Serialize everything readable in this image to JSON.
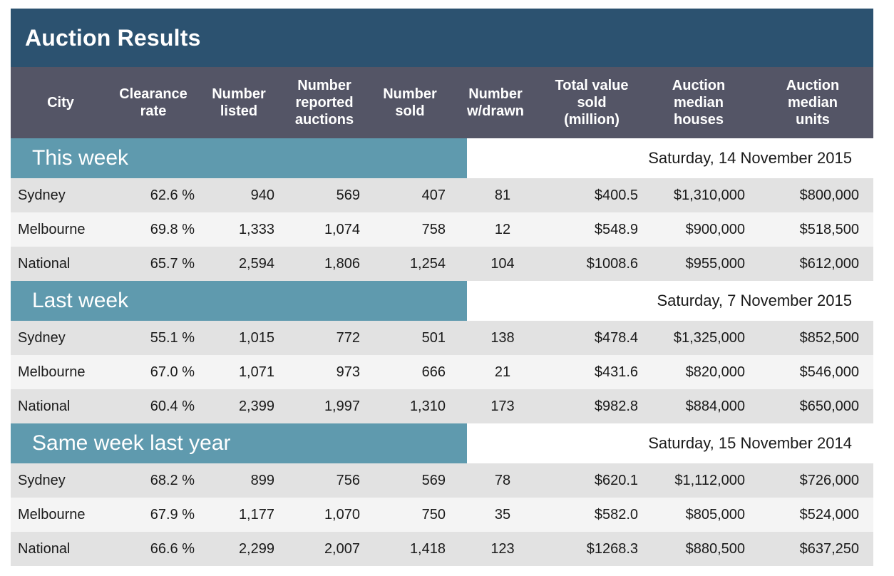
{
  "title": "Auction Results",
  "columns": [
    "City",
    "Clearance\nrate",
    "Number\nlisted",
    "Number\nreported\nauctions",
    "Number\nsold",
    "Number\nw/drawn",
    "Total value\nsold\n(million)",
    "Auction\nmedian\nhouses",
    "Auction\nmedian\nunits"
  ],
  "sections": [
    {
      "label": "This week",
      "date": "Saturday, 14 November 2015",
      "rows": [
        [
          "Sydney",
          "62.6 %",
          "940",
          "569",
          "407",
          "81",
          "$400.5",
          "$1,310,000",
          "$800,000"
        ],
        [
          "Melbourne",
          "69.8 %",
          "1,333",
          "1,074",
          "758",
          "12",
          "$548.9",
          "$900,000",
          "$518,500"
        ],
        [
          "National",
          "65.7 %",
          "2,594",
          "1,806",
          "1,254",
          "104",
          "$1008.6",
          "$955,000",
          "$612,000"
        ]
      ]
    },
    {
      "label": "Last week",
      "date": "Saturday, 7 November 2015",
      "rows": [
        [
          "Sydney",
          "55.1 %",
          "1,015",
          "772",
          "501",
          "138",
          "$478.4",
          "$1,325,000",
          "$852,500"
        ],
        [
          "Melbourne",
          "67.0 %",
          "1,071",
          "973",
          "666",
          "21",
          "$431.6",
          "$820,000",
          "$546,000"
        ],
        [
          "National",
          "60.4 %",
          "2,399",
          "1,997",
          "1,310",
          "173",
          "$982.8",
          "$884,000",
          "$650,000"
        ]
      ]
    },
    {
      "label": "Same week last year",
      "date": "Saturday, 15 November 2014",
      "rows": [
        [
          "Sydney",
          "68.2 %",
          "899",
          "756",
          "569",
          "78",
          "$620.1",
          "$1,112,000",
          "$726,000"
        ],
        [
          "Melbourne",
          "67.9 %",
          "1,177",
          "1,070",
          "750",
          "35",
          "$582.0",
          "$805,000",
          "$524,000"
        ],
        [
          "National",
          "66.6 %",
          "2,299",
          "2,007",
          "1,418",
          "123",
          "$1268.3",
          "$880,500",
          "$637,250"
        ]
      ]
    }
  ],
  "colors": {
    "title_bg": "#2c5270",
    "header_bg": "#545566",
    "section_bg": "#5f9aae",
    "row_odd": "#e2e2e2",
    "row_even": "#f4f4f4"
  }
}
